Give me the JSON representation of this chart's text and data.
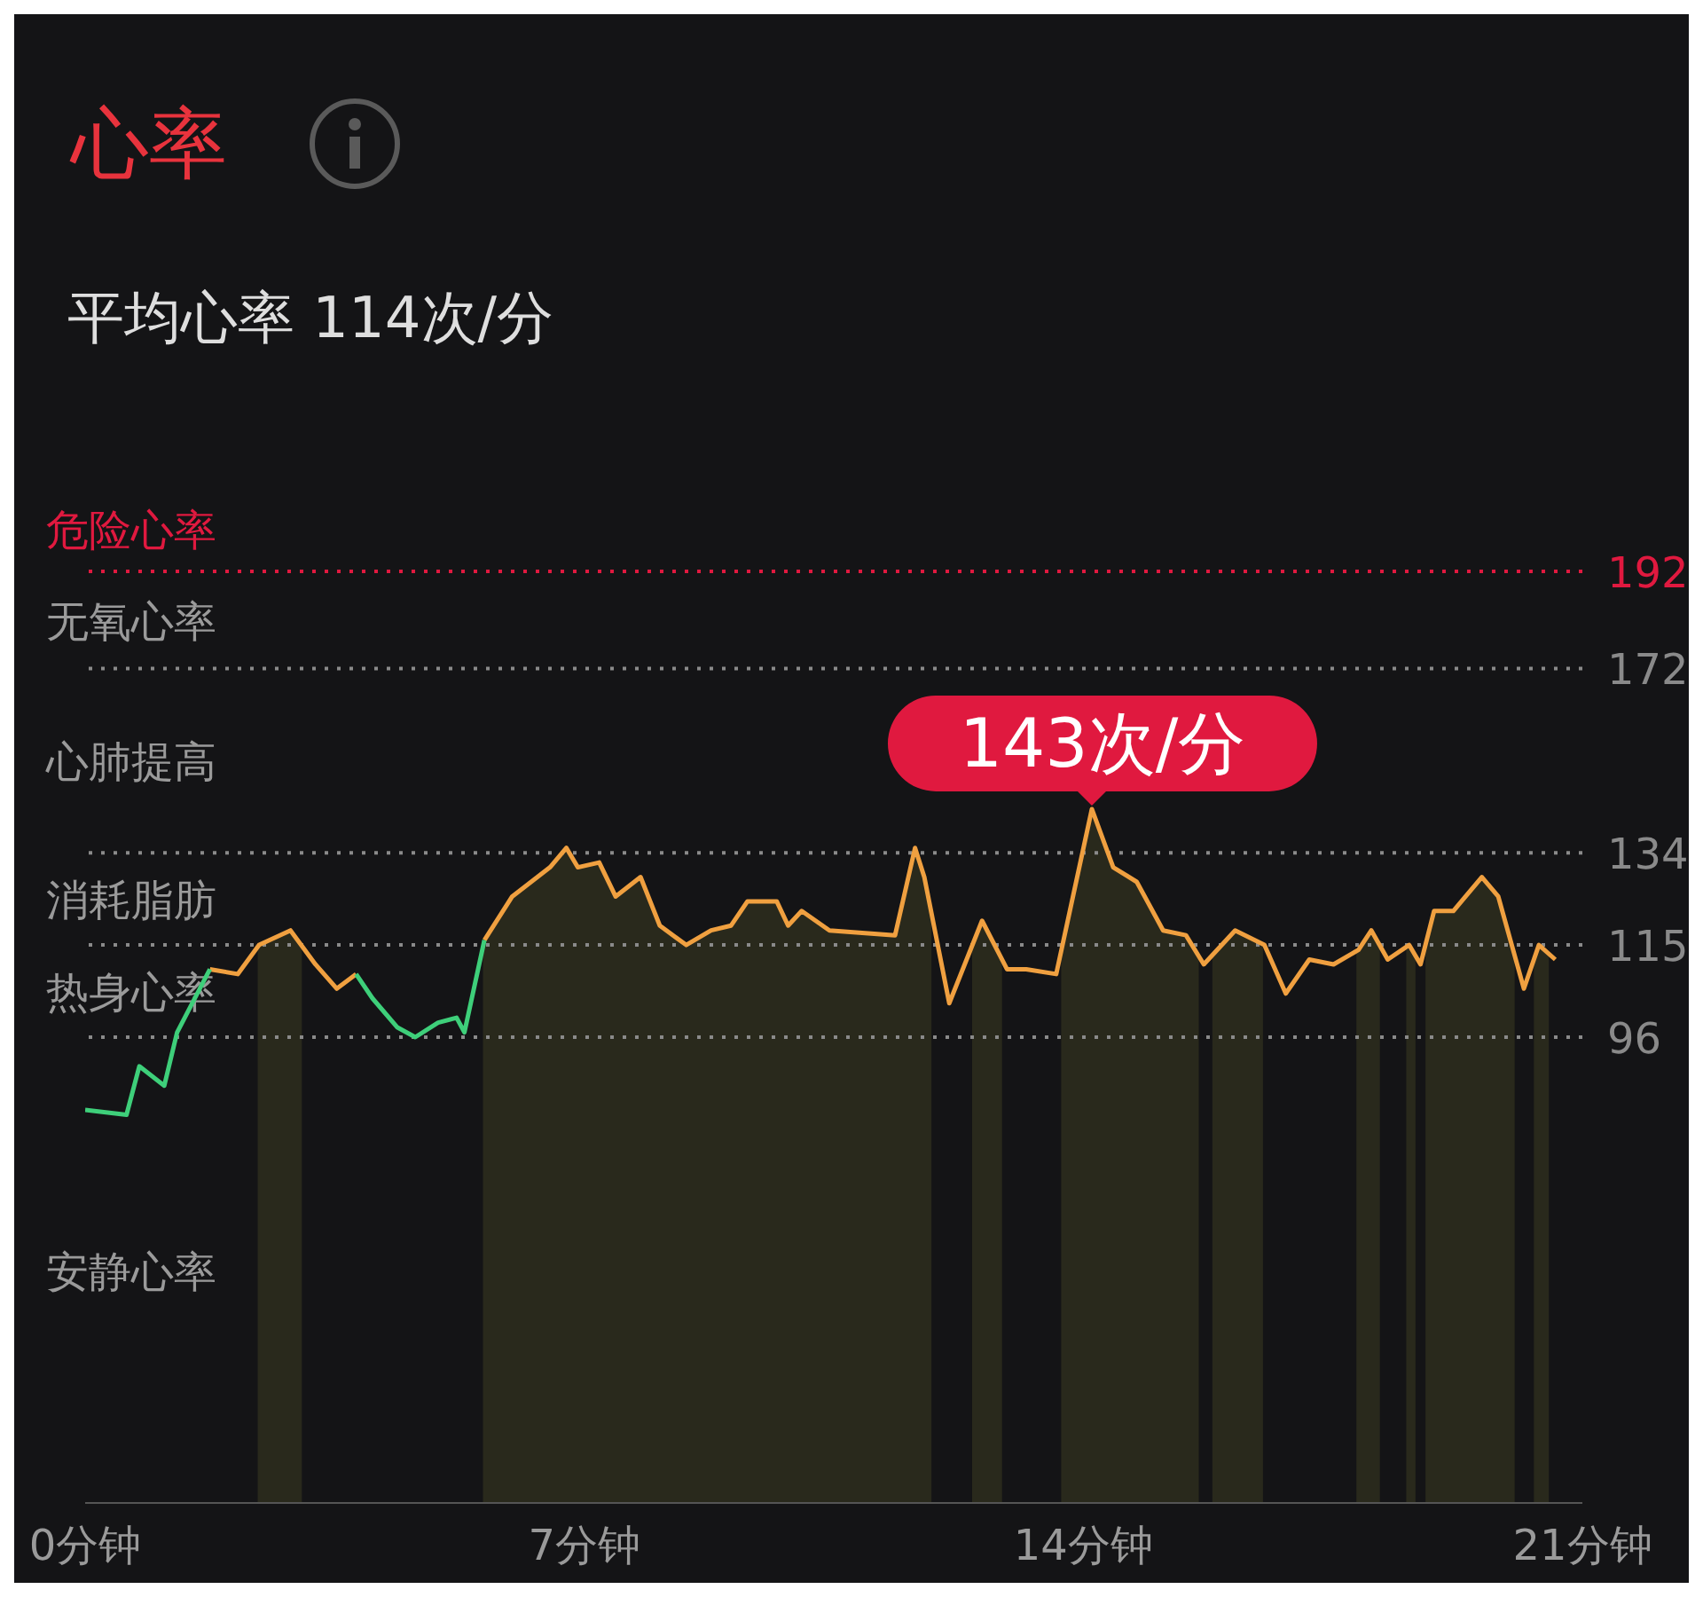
{
  "chart_data": {
    "type": "line",
    "title": "心率",
    "subtitle": "平均心率 114次/分",
    "x": [
      0,
      0.58,
      0.76,
      1.11,
      1.29,
      1.75,
      2.14,
      2.44,
      2.88,
      3.23,
      3.53,
      3.8,
      4.03,
      4.38,
      4.63,
      4.95,
      5.21,
      5.32,
      5.6,
      5.99,
      6.52,
      6.75,
      6.91,
      7.21,
      7.44,
      7.79,
      8.06,
      8.43,
      8.78,
      9.06,
      9.29,
      9.7,
      9.86,
      10.05,
      10.44,
      11.36,
      11.64,
      11.77,
      12.12,
      12.58,
      12.93,
      13.2,
      13.62,
      14.12,
      14.42,
      14.75,
      15.12,
      15.44,
      15.69,
      16.13,
      16.54,
      16.84,
      17.17,
      17.51,
      17.86,
      18.04,
      18.27,
      18.57,
      18.73,
      18.92,
      19.19,
      19.59,
      19.82,
      20.18,
      20.39,
      20.62
    ],
    "series": [
      {
        "color": "#f0a040",
        "values": [
          null,
          null,
          null,
          null,
          null,
          110,
          109,
          115,
          118,
          111,
          106,
          109,
          null,
          null,
          null,
          null,
          null,
          null,
          116,
          125,
          131,
          135,
          131,
          132,
          125,
          129,
          119,
          115,
          118,
          119,
          124,
          124,
          119,
          122,
          118,
          117,
          135,
          129,
          103,
          120,
          110,
          110,
          109,
          143,
          131,
          128,
          118,
          117,
          111,
          118,
          115,
          105,
          112,
          111,
          114,
          118,
          112,
          115,
          111,
          122,
          122,
          129,
          125,
          106,
          115,
          112
        ]
      },
      {
        "color": "#3ecf7a",
        "values": [
          81,
          80,
          90,
          86,
          97,
          110,
          null,
          null,
          null,
          null,
          null,
          109,
          104,
          98,
          96,
          99,
          100,
          97,
          116,
          null,
          null,
          null,
          null,
          null,
          null,
          null,
          null,
          null,
          null,
          null,
          null,
          null,
          null,
          null,
          null,
          null,
          null,
          null,
          null,
          null,
          null,
          null,
          null,
          null,
          null,
          null,
          null,
          null,
          null,
          null,
          null,
          null,
          null,
          null,
          null,
          null,
          null,
          null,
          null,
          null,
          null,
          null,
          null,
          null,
          null,
          null
        ]
      }
    ],
    "xlim": [
      0,
      21
    ],
    "xticks": [
      {
        "value": 0,
        "label": "0分钟"
      },
      {
        "value": 7,
        "label": "7分钟"
      },
      {
        "value": 14,
        "label": "14分钟"
      },
      {
        "value": 21,
        "label": "21分钟"
      }
    ],
    "ylim": [
      0,
      192
    ],
    "yticks": [
      96,
      115,
      134,
      172,
      192
    ],
    "marker": "none",
    "ref_lines": [
      {
        "axis": "y",
        "value": 192,
        "label": "危险心率",
        "color": "#e0193f",
        "line_style": "dotted"
      },
      {
        "axis": "y",
        "value": 172,
        "label": "无氧心率",
        "color": "#8a8a8a",
        "line_style": "dotted"
      },
      {
        "axis": "y",
        "value": 134,
        "label": "心肺提高",
        "color": "#8a8a8a",
        "line_style": "dotted"
      },
      {
        "axis": "y",
        "value": 115,
        "label": "消耗脂肪",
        "color": "#8a8a8a",
        "line_style": "dotted"
      },
      {
        "axis": "y",
        "value": 96,
        "label": "热身心率",
        "color": "#8a8a8a",
        "line_style": "dotted"
      }
    ],
    "bands": [
      {
        "axis": "x",
        "from": 2.42,
        "to": 3.04,
        "color": "#29291c"
      },
      {
        "axis": "x",
        "from": 5.58,
        "to": 11.87,
        "color": "#29291c"
      },
      {
        "axis": "x",
        "from": 12.44,
        "to": 12.86,
        "color": "#29291c"
      },
      {
        "axis": "x",
        "from": 13.69,
        "to": 15.62,
        "color": "#29291c"
      },
      {
        "axis": "x",
        "from": 15.81,
        "to": 16.52,
        "color": "#29291c"
      },
      {
        "axis": "x",
        "from": 17.83,
        "to": 18.16,
        "color": "#29291c"
      },
      {
        "axis": "x",
        "from": 18.53,
        "to": 18.66,
        "color": "#29291c"
      },
      {
        "axis": "x",
        "from": 18.8,
        "to": 20.05,
        "color": "#29291c"
      },
      {
        "axis": "x",
        "from": 20.32,
        "to": 20.53,
        "color": "#29291c"
      }
    ],
    "annotations": [
      "安静心率",
      {
        "text": "143次/分",
        "x": 14.12,
        "y": 143
      }
    ]
  }
}
